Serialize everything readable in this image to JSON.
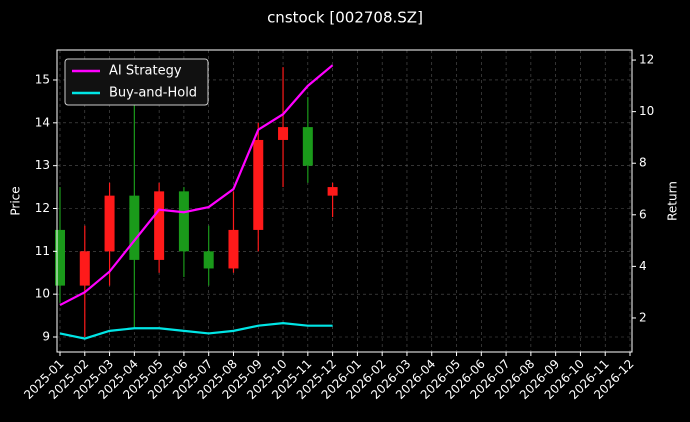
{
  "chart_data": {
    "type": "candlestick",
    "title": "cnstock [002708.SZ]",
    "ylabel": "Price",
    "y2label": "Return",
    "x": [
      "2025-01",
      "2025-02",
      "2025-03",
      "2025-04",
      "2025-05",
      "2025-06",
      "2025-07",
      "2025-08",
      "2025-09",
      "2025-10",
      "2025-11",
      "2025-12"
    ],
    "candles": {
      "open": [
        11.5,
        10.2,
        11.0,
        12.3,
        10.8,
        12.4,
        11.0,
        10.6,
        11.5,
        13.6,
        13.9,
        12.3
      ],
      "high": [
        12.5,
        11.6,
        12.6,
        14.6,
        12.6,
        12.5,
        11.6,
        12.4,
        14.0,
        15.3,
        14.6,
        12.6
      ],
      "low": [
        9.8,
        9.0,
        10.2,
        9.2,
        10.5,
        10.4,
        10.2,
        10.5,
        11.0,
        12.5,
        12.6,
        11.8
      ],
      "close": [
        10.2,
        11.0,
        12.3,
        10.8,
        12.4,
        11.0,
        10.6,
        11.5,
        13.6,
        13.9,
        13.0,
        12.5
      ],
      "up_color": "#ff1a1a",
      "down_color": "#1a9a1a"
    },
    "series": [
      {
        "name": "AI Strategy",
        "color": "#ff00ff",
        "axis": "y2",
        "values": [
          2.5,
          3.0,
          3.8,
          5.0,
          6.2,
          6.1,
          6.3,
          7.0,
          9.3,
          9.9,
          11.0,
          11.8
        ]
      },
      {
        "name": "Buy-and-Hold",
        "color": "#00e5e5",
        "axis": "y2",
        "values": [
          1.4,
          1.2,
          1.5,
          1.6,
          1.6,
          1.5,
          1.4,
          1.5,
          1.7,
          1.8,
          1.7,
          1.7
        ]
      }
    ],
    "xlim": [
      "2025-01",
      "2026-12"
    ],
    "xticks": [
      "2025-01",
      "2025-02",
      "2025-03",
      "2025-04",
      "2025-05",
      "2025-06",
      "2025-07",
      "2025-08",
      "2025-09",
      "2025-10",
      "2025-11",
      "2025-12",
      "2026-01",
      "2026-02",
      "2026-03",
      "2026-04",
      "2026-05",
      "2026-06",
      "2026-07",
      "2026-08",
      "2026-09",
      "2026-10",
      "2026-11",
      "2026-12"
    ],
    "ylim": [
      8.65,
      15.7
    ],
    "yticks": [
      9,
      10,
      11,
      12,
      13,
      14,
      15
    ],
    "y2lim": [
      0.68,
      12.39
    ],
    "y2ticks": [
      2,
      4,
      6,
      8,
      10,
      12
    ],
    "grid": true,
    "legend": "upper-left"
  }
}
